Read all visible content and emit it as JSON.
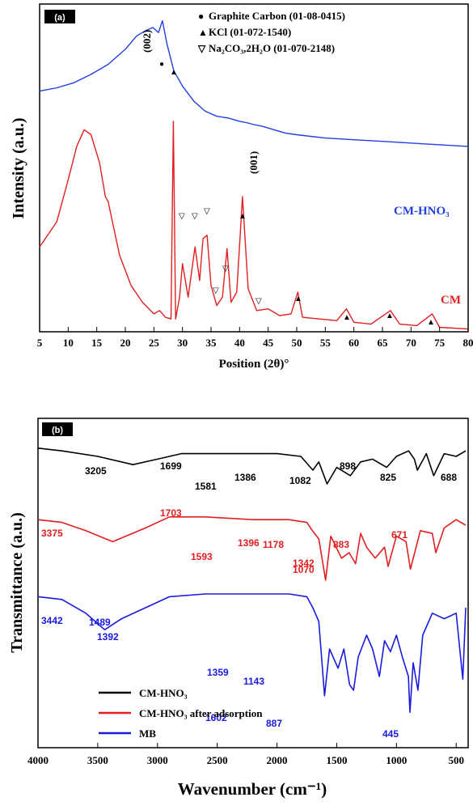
{
  "chart_data": [
    {
      "panel": "(a)",
      "type": "line",
      "xlabel": "Position (2θ)°",
      "ylabel": "Intensity (a.u.)",
      "xlim": [
        5,
        80
      ],
      "xticks": [
        "5",
        "10",
        "15",
        "20",
        "25",
        "30",
        "35",
        "40",
        "45",
        "50",
        "55",
        "60",
        "65",
        "70",
        "75",
        "80"
      ],
      "legend": [
        {
          "marker": "●",
          "text": "Graphite Carbon (01-08-0415)"
        },
        {
          "marker": "▲",
          "text": "KCl (01-072-1540)"
        },
        {
          "marker": "▽",
          "text": "Na₂CO₃,2H₂O (01-070-2148)"
        }
      ],
      "series": [
        {
          "name": "CM-HNO₃",
          "color": "#1f3fe0",
          "x": [
            5,
            8,
            11,
            14,
            17,
            20,
            22,
            23.5,
            24.8,
            25.8,
            26.5,
            27.3,
            28.5,
            30,
            32,
            34,
            36,
            38,
            40,
            41.5,
            42.5,
            44,
            46,
            48,
            50,
            55,
            60,
            65,
            70,
            75,
            80
          ],
          "y": [
            52,
            50,
            47,
            42,
            36,
            27,
            19,
            16,
            14,
            17,
            10,
            24,
            40,
            49,
            58,
            64,
            67,
            68,
            70,
            71,
            72,
            73,
            75,
            77,
            78,
            80,
            81,
            82,
            83,
            84,
            85
          ]
        },
        {
          "name": "CM",
          "color": "#e02020",
          "x": [
            5,
            8,
            10,
            11.5,
            12.8,
            14,
            15.5,
            16.5,
            17,
            19,
            21,
            23,
            25,
            26,
            27,
            28,
            28.4,
            28.8,
            29.5,
            30,
            31,
            32.2,
            33,
            33.6,
            34.3,
            35,
            36,
            37,
            37.8,
            38.5,
            39.5,
            40.5,
            41.5,
            43,
            45,
            47,
            49,
            50.2,
            51,
            54,
            57,
            58.7,
            60,
            63,
            66.4,
            68,
            71,
            73.7,
            75,
            80
          ],
          "y": [
            145,
            130,
            105,
            85,
            75,
            78,
            95,
            115,
            118,
            150,
            168,
            178,
            185,
            183,
            187,
            188,
            70,
            188,
            175,
            155,
            175,
            145,
            165,
            140,
            138,
            168,
            180,
            175,
            146,
            178,
            172,
            115,
            170,
            183,
            182,
            186,
            185,
            172,
            187,
            188,
            189,
            182,
            190,
            191,
            183,
            191,
            192,
            185,
            193,
            194
          ]
        }
      ],
      "annotations": [
        "(002)",
        "(001)"
      ],
      "series_labels": [
        "CM-HNO₃",
        "CM"
      ]
    },
    {
      "panel": "(b)",
      "type": "line",
      "xlabel": "Wavenumber (cm⁻¹)",
      "ylabel": "Transmittance (a.u.)",
      "xlim": [
        4000,
        400
      ],
      "xticks": [
        "4000",
        "3500",
        "3000",
        "2500",
        "2000",
        "1500",
        "1000",
        "500"
      ],
      "series": [
        {
          "name": "CM-HNO₃",
          "color": "#000000",
          "x": [
            4000,
            3800,
            3500,
            3205,
            3000,
            2800,
            2500,
            2000,
            1800,
            1699,
            1650,
            1581,
            1500,
            1386,
            1300,
            1200,
            1082,
            1000,
            898,
            850,
            825,
            750,
            688,
            600,
            500,
            420
          ],
          "y": [
            98,
            97,
            95,
            92,
            94,
            96,
            96,
            96,
            95,
            90,
            93,
            85,
            91,
            88,
            93,
            94,
            91,
            95,
            97,
            94,
            90,
            96,
            88,
            96,
            95,
            97
          ]
        },
        {
          "name": "CM-HNO₃ after adsorption",
          "color": "#e02020",
          "x": [
            4000,
            3800,
            3600,
            3375,
            3100,
            2900,
            2600,
            2200,
            1900,
            1750,
            1703,
            1650,
            1593,
            1550,
            1460,
            1396,
            1342,
            1300,
            1250,
            1178,
            1100,
            1070,
            1000,
            920,
            883,
            800,
            700,
            671,
            600,
            500,
            420
          ],
          "y": [
            72,
            71,
            68,
            64,
            69,
            73,
            73,
            72,
            72,
            71,
            68,
            65,
            50,
            66,
            58,
            60,
            56,
            67,
            62,
            58,
            62,
            55,
            66,
            64,
            54,
            68,
            67,
            60,
            69,
            72,
            70
          ]
        },
        {
          "name": "MB",
          "color": "#1a1ae0",
          "x": [
            4000,
            3800,
            3600,
            3442,
            3300,
            3100,
            2900,
            2600,
            2200,
            1900,
            1750,
            1700,
            1650,
            1602,
            1560,
            1489,
            1440,
            1392,
            1359,
            1320,
            1250,
            1200,
            1143,
            1100,
            1050,
            1000,
            950,
            900,
            887,
            860,
            820,
            780,
            700,
            600,
            500,
            445,
            420
          ],
          "y": [
            44,
            43,
            38,
            32,
            36,
            40,
            44,
            45,
            45,
            45,
            44,
            40,
            35,
            8,
            25,
            18,
            25,
            12,
            10,
            22,
            30,
            25,
            15,
            28,
            24,
            30,
            22,
            15,
            2,
            20,
            10,
            30,
            38,
            36,
            38,
            14,
            40
          ]
        }
      ],
      "peak_labels": [
        {
          "series": "CM-HNO₃",
          "labels": [
            "3205",
            "1699",
            "1581",
            "1386",
            "1082",
            "898",
            "825",
            "688"
          ]
        },
        {
          "series": "CM-HNO₃ after adsorption",
          "labels": [
            "3375",
            "1703",
            "1593",
            "1396",
            "1342",
            "1178",
            "1070",
            "883",
            "671"
          ]
        },
        {
          "series": "MB",
          "labels": [
            "3442",
            "1489",
            "1392",
            "1359",
            "1143",
            "1602",
            "887",
            "445"
          ]
        }
      ],
      "legend": [
        "CM-HNO₃",
        "CM-HNO₃ after adsorption",
        "MB"
      ]
    }
  ]
}
